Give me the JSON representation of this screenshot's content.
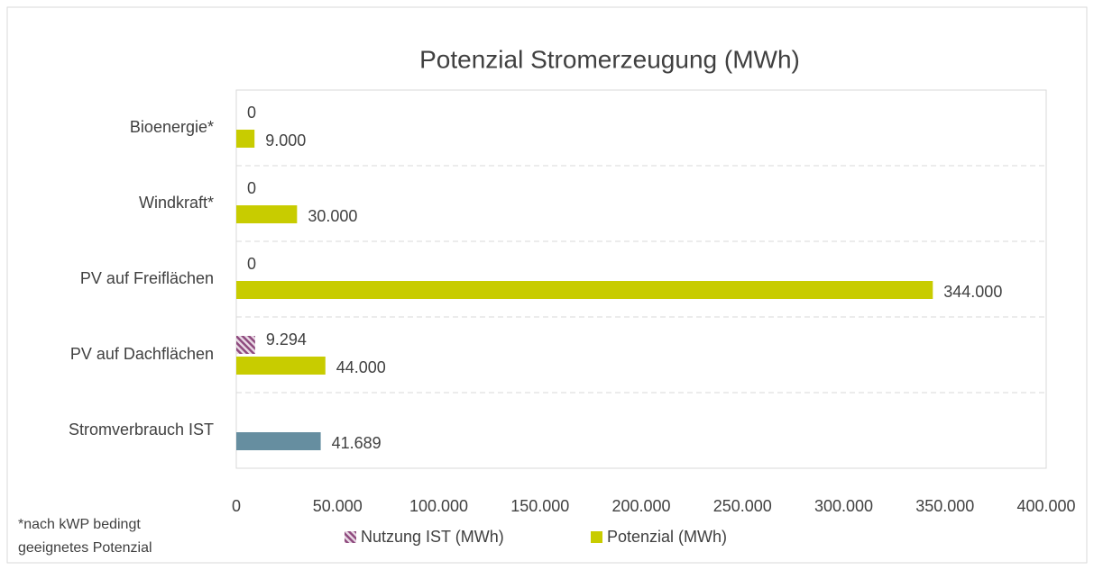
{
  "chart_data": {
    "type": "hbar",
    "title": "Potenzial Stromerzeugung (MWh)",
    "categories": [
      "Bioenergie*",
      "Windkraft*",
      "PV auf Freiflächen",
      "PV auf Dachflächen",
      "Stromverbrauch IST"
    ],
    "series": [
      {
        "name": "Nutzung IST (MWh)",
        "color": "#8e4a7e",
        "pattern": "hatch",
        "values": [
          0,
          0,
          0,
          9294,
          null
        ],
        "value_labels": [
          "0",
          "0",
          "0",
          "9.294",
          null
        ]
      },
      {
        "name": "Potenzial (MWh)",
        "color": "#c8cc00",
        "colors": [
          "#c8cc00",
          "#c8cc00",
          "#c8cc00",
          "#c8cc00",
          "#668ea0"
        ],
        "values": [
          9000,
          30000,
          344000,
          44000,
          41689
        ],
        "value_labels": [
          "9.000",
          "30.000",
          "344.000",
          "44.000",
          "41.689"
        ]
      }
    ],
    "xlim": [
      0,
      400000
    ],
    "xticks": [
      0,
      {
        "value": 50000,
        "label": "50.000"
      },
      {
        "value": 100000,
        "label": "100.000"
      },
      {
        "value": 150000,
        "label": "150.000"
      },
      {
        "value": 200000,
        "label": "200.000"
      },
      {
        "value": 250000,
        "label": "250.000"
      },
      {
        "value": 300000,
        "label": "300.000"
      },
      {
        "value": 350000,
        "label": "350.000"
      },
      {
        "value": 400000,
        "label": "400.000"
      }
    ],
    "grid": false,
    "legend": "bottom",
    "footnote": [
      "*nach kWP bedingt",
      "geeignetes Potenzial"
    ]
  }
}
